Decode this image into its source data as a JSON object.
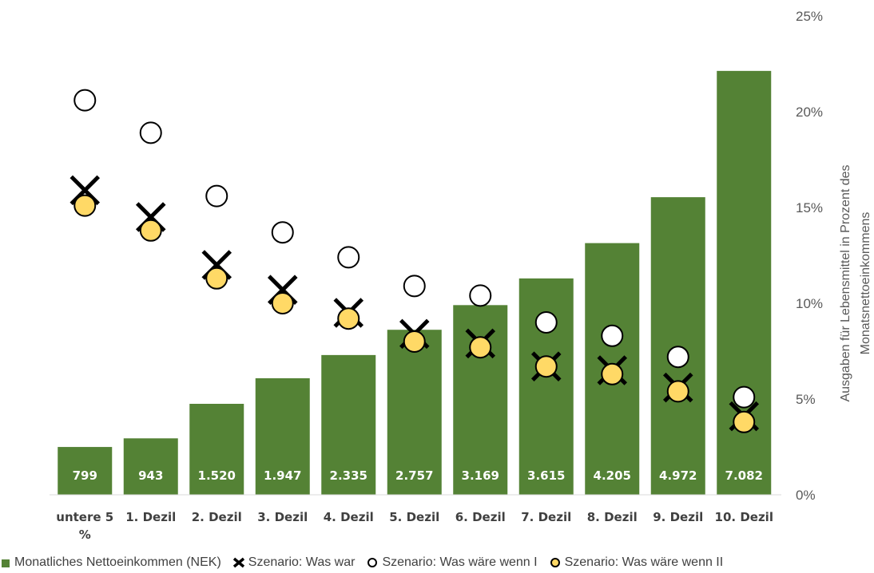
{
  "chart_data": {
    "type": "bar",
    "categories": [
      "untere 5 %",
      "1. Dezil",
      "2. Dezil",
      "3. Dezil",
      "4. Dezil",
      "5. Dezil",
      "6. Dezil",
      "7. Dezil",
      "8. Dezil",
      "9. Dezil",
      "10. Dezil"
    ],
    "bar_series": {
      "name": "Monatliches Nettoeinkommen (NEK)",
      "values": [
        799,
        943,
        1520,
        1947,
        2335,
        2757,
        3169,
        3615,
        4205,
        4972,
        7082
      ],
      "labels": [
        "799",
        "943",
        "1.520",
        "1.947",
        "2.335",
        "2.757",
        "3.169",
        "3.615",
        "4.205",
        "4.972",
        "7.082"
      ],
      "color": "#548235"
    },
    "series": [
      {
        "name": "Szenario: Was war",
        "marker": "x",
        "values": [
          15.9,
          14.5,
          12.0,
          10.7,
          9.5,
          8.4,
          7.9,
          6.7,
          6.5,
          5.6,
          4.1
        ]
      },
      {
        "name": "Szenario: Was wäre wenn I",
        "marker": "open-circle",
        "values": [
          20.6,
          18.9,
          15.6,
          13.7,
          12.4,
          10.9,
          10.4,
          9.0,
          8.3,
          7.2,
          5.1
        ]
      },
      {
        "name": "Szenario: Was wäre wenn II",
        "marker": "yellow-circle",
        "values": [
          15.1,
          13.8,
          11.3,
          10.0,
          9.2,
          8.0,
          7.7,
          6.7,
          6.3,
          5.4,
          3.8
        ],
        "color": "#FFD966"
      }
    ],
    "y2": {
      "label": "Ausgaben für Lebensmittel in Prozent des Monatsnettoeinkommens",
      "ylim": [
        0,
        25
      ],
      "ticks": [
        "0%",
        "5%",
        "10%",
        "15%",
        "20%",
        "25%"
      ],
      "tick_values": [
        0,
        5,
        10,
        15,
        20,
        25
      ]
    },
    "bar_scale_max": 8000,
    "grid": false,
    "legend_position": "bottom"
  },
  "legend": {
    "bar": "Monatliches Nettoeinkommen (NEK)",
    "x": "Szenario: Was war",
    "open": "Szenario: Was wäre wenn I",
    "yellow": "Szenario: Was wäre wenn II"
  }
}
